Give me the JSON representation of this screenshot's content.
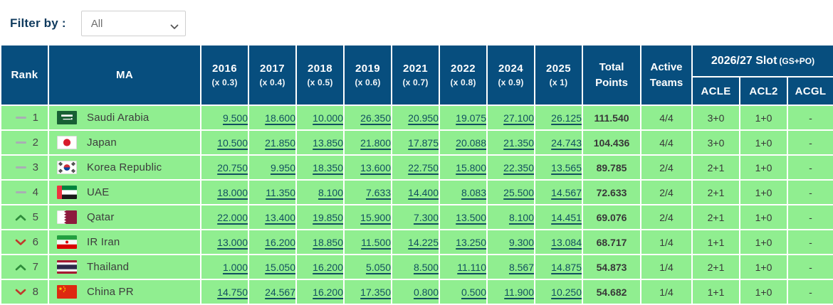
{
  "filter": {
    "label": "Filter by :",
    "selected": "All"
  },
  "colors": {
    "header_blue": "#074e7e",
    "row_green": "#90ee90",
    "link_teal": "#11505f",
    "label_navy": "#0f3a5d",
    "trend_up_green": "#2e8b3a",
    "trend_down_red": "#c0392b"
  },
  "table": {
    "headers": {
      "rank": "Rank",
      "ma": "MA",
      "years": [
        {
          "year": "2016",
          "multiplier": "(x 0.3)"
        },
        {
          "year": "2017",
          "multiplier": "(x 0.4)"
        },
        {
          "year": "2018",
          "multiplier": "(x 0.5)"
        },
        {
          "year": "2019",
          "multiplier": "(x 0.6)"
        },
        {
          "year": "2021",
          "multiplier": "(x 0.7)"
        },
        {
          "year": "2022",
          "multiplier": "(x 0.8)"
        },
        {
          "year": "2024",
          "multiplier": "(x 0.9)"
        },
        {
          "year": "2025",
          "multiplier": "(x 1)"
        }
      ],
      "total": "Total Points",
      "active": "Active Teams",
      "slot_group_title": "2026/27 Slot",
      "slot_group_suffix": "(GS+PO)",
      "slot_cols": [
        "ACLE",
        "ACL2",
        "ACGL"
      ]
    },
    "rows": [
      {
        "trend": "same",
        "rank": "1",
        "flag": "saudi-arabia",
        "country": "Saudi Arabia",
        "values": [
          "9.500",
          "18.600",
          "10.000",
          "26.350",
          "20.950",
          "19.075",
          "27.100",
          "26.125"
        ],
        "total": "111.540",
        "active": "4/4",
        "slots": [
          "3+0",
          "1+0",
          "-"
        ]
      },
      {
        "trend": "same",
        "rank": "2",
        "flag": "japan",
        "country": "Japan",
        "values": [
          "10.500",
          "21.850",
          "13.850",
          "21.800",
          "17.875",
          "20.088",
          "21.350",
          "24.743"
        ],
        "total": "104.436",
        "active": "4/4",
        "slots": [
          "3+0",
          "1+0",
          "-"
        ]
      },
      {
        "trend": "same",
        "rank": "3",
        "flag": "korea-republic",
        "country": "Korea Republic",
        "values": [
          "20.750",
          "9.950",
          "18.350",
          "13.600",
          "22.750",
          "15.800",
          "22.350",
          "13.565"
        ],
        "total": "89.785",
        "active": "2/4",
        "slots": [
          "2+1",
          "1+0",
          "-"
        ]
      },
      {
        "trend": "same",
        "rank": "4",
        "flag": "uae",
        "country": "UAE",
        "values": [
          "18.000",
          "11.350",
          "8.100",
          "7.633",
          "14.400",
          "8.083",
          "25.500",
          "14.567"
        ],
        "total": "72.633",
        "active": "2/4",
        "slots": [
          "2+1",
          "1+0",
          "-"
        ]
      },
      {
        "trend": "up",
        "rank": "5",
        "flag": "qatar",
        "country": "Qatar",
        "values": [
          "22.000",
          "13.400",
          "19.850",
          "15.900",
          "7.300",
          "13.500",
          "8.100",
          "14.451"
        ],
        "total": "69.076",
        "active": "2/4",
        "slots": [
          "2+1",
          "1+0",
          "-"
        ]
      },
      {
        "trend": "down",
        "rank": "6",
        "flag": "ir-iran",
        "country": "IR Iran",
        "values": [
          "13.000",
          "16.200",
          "18.850",
          "11.500",
          "14.225",
          "13.250",
          "9.300",
          "13.084"
        ],
        "total": "68.717",
        "active": "1/4",
        "slots": [
          "1+1",
          "1+0",
          "-"
        ]
      },
      {
        "trend": "up",
        "rank": "7",
        "flag": "thailand",
        "country": "Thailand",
        "values": [
          "1.000",
          "15.050",
          "16.200",
          "5.050",
          "8.500",
          "11.110",
          "8.567",
          "14.875"
        ],
        "total": "54.873",
        "active": "1/4",
        "slots": [
          "2+1",
          "1+0",
          "-"
        ]
      },
      {
        "trend": "down",
        "rank": "8",
        "flag": "china-pr",
        "country": "China PR",
        "values": [
          "14.750",
          "24.567",
          "16.200",
          "17.350",
          "0.800",
          "0.500",
          "11.900",
          "10.250"
        ],
        "total": "54.682",
        "active": "1/4",
        "slots": [
          "1+1",
          "1+0",
          "-"
        ]
      }
    ]
  }
}
